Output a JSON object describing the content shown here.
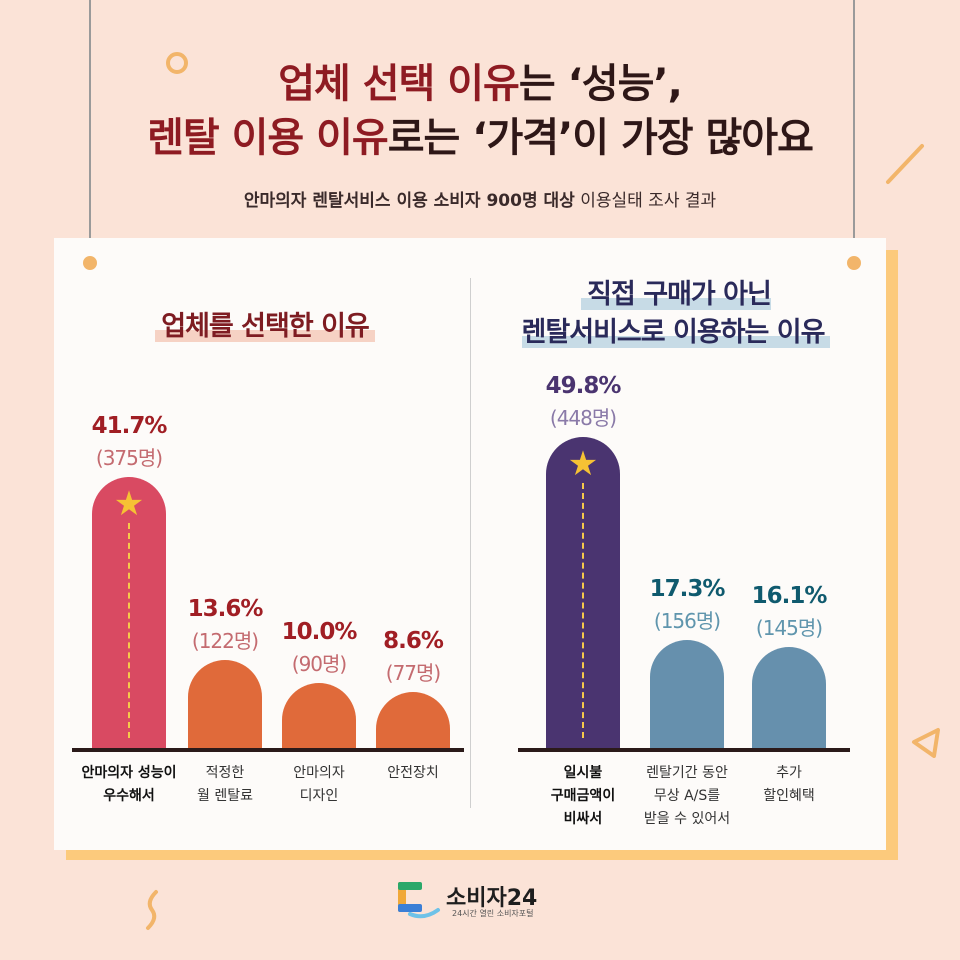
{
  "title": {
    "line1_prefix": "업체 선택 이유",
    "line1_suffix": "는 ‘성능’,",
    "line2_prefix": "렌탈 이용 이유",
    "line2_suffix": "로는 ‘가격’이 가장 많아요"
  },
  "subtitle": {
    "bold": "안마의자 렌탈서비스 이용 소비자 900명 대상",
    "normal": " 이용실태 조사 결과"
  },
  "chart_data": [
    {
      "type": "bar",
      "title": "업체를 선택한 이유",
      "categories": [
        "안마의자 성능이\n우수해서",
        "적정한\n월 렌탈료",
        "안마의자\n디자인",
        "안전장치"
      ],
      "values": [
        41.7,
        13.6,
        10.0,
        8.6
      ],
      "value_labels": [
        "41.7%",
        "13.6%",
        "10.0%",
        "8.6%"
      ],
      "counts": [
        "(375명)",
        "(122명)",
        "(90명)",
        "(77명)"
      ],
      "highlight_index": 0,
      "colors": [
        "#d94a62",
        "#e06a3a",
        "#e06a3a",
        "#e06a3a"
      ],
      "label_color": "#a01e24",
      "count_color": "#c46b70"
    },
    {
      "type": "bar",
      "title": "직접 구매가 아닌\n렌탈서비스로 이용하는 이유",
      "categories": [
        "일시불\n구매금액이\n비싸서",
        "렌탈기간 동안\n무상 A/S를\n받을 수 있어서",
        "추가\n할인혜택"
      ],
      "values": [
        49.8,
        17.3,
        16.1
      ],
      "value_labels": [
        "49.8%",
        "17.3%",
        "16.1%"
      ],
      "counts": [
        "(448명)",
        "(156명)",
        "(145명)"
      ],
      "highlight_index": 0,
      "colors": [
        "#4a3470",
        "#6690ad",
        "#6690ad"
      ],
      "label_colors": [
        "#4a3470",
        "#0f5a6e",
        "#0f5a6e"
      ],
      "count_colors": [
        "#8a7aa8",
        "#5f95ad",
        "#5f95ad"
      ]
    }
  ],
  "logo": {
    "name": "소비자24",
    "tagline": "24시간 열린 소비자포털"
  },
  "colors": {
    "background": "#fbe3d7",
    "card": "#fdfbf9",
    "card_shadow": "#fcca7c",
    "title_red": "#8e1b22"
  }
}
